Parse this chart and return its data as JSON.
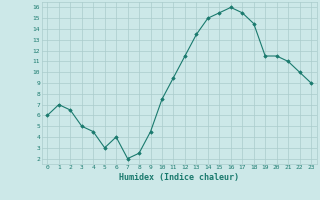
{
  "x": [
    0,
    1,
    2,
    3,
    4,
    5,
    6,
    7,
    8,
    9,
    10,
    11,
    12,
    13,
    14,
    15,
    16,
    17,
    18,
    19,
    20,
    21,
    22,
    23
  ],
  "y": [
    6.0,
    7.0,
    6.5,
    5.0,
    4.5,
    3.0,
    4.0,
    2.0,
    2.5,
    4.5,
    7.5,
    9.5,
    11.5,
    13.5,
    15.0,
    15.5,
    16.0,
    15.5,
    14.5,
    11.5,
    11.5,
    11.0,
    10.0,
    9.0
  ],
  "xlabel": "Humidex (Indice chaleur)",
  "line_color": "#1a7a6e",
  "marker_color": "#1a7a6e",
  "bg_color": "#cce8e8",
  "grid_color": "#aacccc",
  "tick_label_color": "#1a7a6e",
  "axis_label_color": "#1a7a6e",
  "xlim": [
    -0.5,
    23.5
  ],
  "ylim": [
    1.5,
    16.5
  ],
  "yticks": [
    2,
    3,
    4,
    5,
    6,
    7,
    8,
    9,
    10,
    11,
    12,
    13,
    14,
    15,
    16
  ],
  "xtick_labels": [
    "0",
    "1",
    "2",
    "3",
    "4",
    "5",
    "6",
    "7",
    "8",
    "9",
    "10",
    "11",
    "12",
    "13",
    "14",
    "15",
    "16",
    "17",
    "18",
    "19",
    "20",
    "21",
    "22",
    "23"
  ]
}
